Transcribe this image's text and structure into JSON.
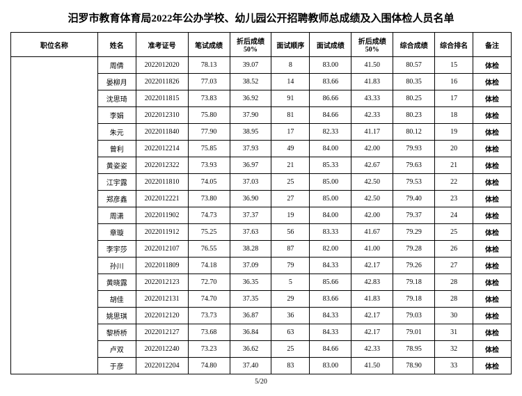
{
  "title": "汨罗市教育体育局2022年公办学校、幼儿园公开招聘教师总成绩及入围体检人员名单",
  "columns": [
    "职位名称",
    "姓名",
    "准考证号",
    "笔试成绩",
    "折后成绩50%",
    "面试顺序",
    "面试成绩",
    "折后成绩50%",
    "综合成绩",
    "综合排名",
    "备注"
  ],
  "rows": [
    {
      "name": "周倩",
      "examNo": "2022012020",
      "written": "78.13",
      "writtenHalf": "39.07",
      "order": "8",
      "interview": "83.00",
      "interviewHalf": "41.50",
      "total": "80.57",
      "rank": "15",
      "remark": "体检"
    },
    {
      "name": "晏柳月",
      "examNo": "2022011826",
      "written": "77.03",
      "writtenHalf": "38.52",
      "order": "14",
      "interview": "83.66",
      "interviewHalf": "41.83",
      "total": "80.35",
      "rank": "16",
      "remark": "体检"
    },
    {
      "name": "沈思琦",
      "examNo": "2022011815",
      "written": "73.83",
      "writtenHalf": "36.92",
      "order": "91",
      "interview": "86.66",
      "interviewHalf": "43.33",
      "total": "80.25",
      "rank": "17",
      "remark": "体检"
    },
    {
      "name": "李娟",
      "examNo": "2022012310",
      "written": "75.80",
      "writtenHalf": "37.90",
      "order": "81",
      "interview": "84.66",
      "interviewHalf": "42.33",
      "total": "80.23",
      "rank": "18",
      "remark": "体检"
    },
    {
      "name": "朱元",
      "examNo": "2022011840",
      "written": "77.90",
      "writtenHalf": "38.95",
      "order": "17",
      "interview": "82.33",
      "interviewHalf": "41.17",
      "total": "80.12",
      "rank": "19",
      "remark": "体检"
    },
    {
      "name": "曾利",
      "examNo": "2022012214",
      "written": "75.85",
      "writtenHalf": "37.93",
      "order": "49",
      "interview": "84.00",
      "interviewHalf": "42.00",
      "total": "79.93",
      "rank": "20",
      "remark": "体检"
    },
    {
      "name": "黄姿姿",
      "examNo": "2022012322",
      "written": "73.93",
      "writtenHalf": "36.97",
      "order": "21",
      "interview": "85.33",
      "interviewHalf": "42.67",
      "total": "79.63",
      "rank": "21",
      "remark": "体检"
    },
    {
      "name": "江宇露",
      "examNo": "2022011810",
      "written": "74.05",
      "writtenHalf": "37.03",
      "order": "25",
      "interview": "85.00",
      "interviewHalf": "42.50",
      "total": "79.53",
      "rank": "22",
      "remark": "体检"
    },
    {
      "name": "郑彦鑫",
      "examNo": "2022012221",
      "written": "73.80",
      "writtenHalf": "36.90",
      "order": "27",
      "interview": "85.00",
      "interviewHalf": "42.50",
      "total": "79.40",
      "rank": "23",
      "remark": "体检"
    },
    {
      "name": "周潇",
      "examNo": "2022011902",
      "written": "74.73",
      "writtenHalf": "37.37",
      "order": "19",
      "interview": "84.00",
      "interviewHalf": "42.00",
      "total": "79.37",
      "rank": "24",
      "remark": "体检"
    },
    {
      "name": "章璇",
      "examNo": "2022011912",
      "written": "75.25",
      "writtenHalf": "37.63",
      "order": "56",
      "interview": "83.33",
      "interviewHalf": "41.67",
      "total": "79.29",
      "rank": "25",
      "remark": "体检"
    },
    {
      "name": "李宇莎",
      "examNo": "2022012107",
      "written": "76.55",
      "writtenHalf": "38.28",
      "order": "87",
      "interview": "82.00",
      "interviewHalf": "41.00",
      "total": "79.28",
      "rank": "26",
      "remark": "体检"
    },
    {
      "name": "孙川",
      "examNo": "2022011809",
      "written": "74.18",
      "writtenHalf": "37.09",
      "order": "79",
      "interview": "84.33",
      "interviewHalf": "42.17",
      "total": "79.26",
      "rank": "27",
      "remark": "体检"
    },
    {
      "name": "黄晓露",
      "examNo": "2022012123",
      "written": "72.70",
      "writtenHalf": "36.35",
      "order": "5",
      "interview": "85.66",
      "interviewHalf": "42.83",
      "total": "79.18",
      "rank": "28",
      "remark": "体检"
    },
    {
      "name": "胡佳",
      "examNo": "2022012131",
      "written": "74.70",
      "writtenHalf": "37.35",
      "order": "29",
      "interview": "83.66",
      "interviewHalf": "41.83",
      "total": "79.18",
      "rank": "28",
      "remark": "体检"
    },
    {
      "name": "姚思琪",
      "examNo": "2022012120",
      "written": "73.73",
      "writtenHalf": "36.87",
      "order": "36",
      "interview": "84.33",
      "interviewHalf": "42.17",
      "total": "79.03",
      "rank": "30",
      "remark": "体检"
    },
    {
      "name": "黎桥桥",
      "examNo": "2022012127",
      "written": "73.68",
      "writtenHalf": "36.84",
      "order": "63",
      "interview": "84.33",
      "interviewHalf": "42.17",
      "total": "79.01",
      "rank": "31",
      "remark": "体检"
    },
    {
      "name": "卢双",
      "examNo": "2022012240",
      "written": "73.23",
      "writtenHalf": "36.62",
      "order": "25",
      "interview": "84.66",
      "interviewHalf": "42.33",
      "total": "78.95",
      "rank": "32",
      "remark": "体检"
    },
    {
      "name": "于彦",
      "examNo": "2022012204",
      "written": "74.80",
      "writtenHalf": "37.40",
      "order": "83",
      "interview": "83.00",
      "interviewHalf": "41.50",
      "total": "78.90",
      "rank": "33",
      "remark": "体检"
    }
  ],
  "pager": "5/20"
}
